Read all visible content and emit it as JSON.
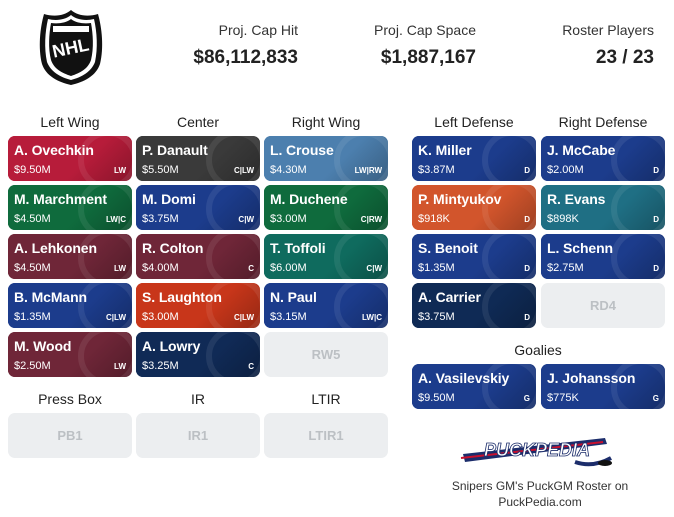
{
  "summary": {
    "cap_hit_label": "Proj. Cap Hit",
    "cap_hit_value": "$86,112,833",
    "cap_space_label": "Proj. Cap Space",
    "cap_space_value": "$1,887,167",
    "roster_label": "Roster Players",
    "roster_value": "23 / 23"
  },
  "columns": {
    "left_wing": "Left Wing",
    "center": "Center",
    "right_wing": "Right Wing",
    "left_defense": "Left Defense",
    "right_defense": "Right Defense",
    "goalies": "Goalies",
    "press_box": "Press Box",
    "ir": "IR",
    "ltir": "LTIR"
  },
  "colors": {
    "capitals": "#b81e33",
    "hurricanes": "#c8102e",
    "avalanche": "#6f263d",
    "senators": "#4b4b4b",
    "lightning": "#123a86",
    "kraken": "#1f6f84",
    "jets": "#0f2a55",
    "oilers": "#e45c28",
    "bluesteel": "#4a79a8",
    "stars": "#0f6b4b",
    "leafs": "#1a3a8a",
    "green": "#0e6b3a"
  },
  "left_wing": [
    {
      "name": "A. Ovechkin",
      "cap": "$9.50M",
      "pos": "LW",
      "color": "#b71c3a"
    },
    {
      "name": "M. Marchment",
      "cap": "$4.50M",
      "pos": "LW|C",
      "color": "#0f6b3d"
    },
    {
      "name": "A. Lehkonen",
      "cap": "$4.50M",
      "pos": "LW",
      "color": "#6f2638"
    },
    {
      "name": "B. McMann",
      "cap": "$1.35M",
      "pos": "C|LW",
      "color": "#1c3c8c"
    },
    {
      "name": "M. Wood",
      "cap": "$2.50M",
      "pos": "LW",
      "color": "#6f2638"
    }
  ],
  "center": [
    {
      "name": "P. Danault",
      "cap": "$5.50M",
      "pos": "C|LW",
      "color": "#3a3a3a"
    },
    {
      "name": "M. Domi",
      "cap": "$3.75M",
      "pos": "C|W",
      "color": "#1c3c8c"
    },
    {
      "name": "R. Colton",
      "cap": "$4.00M",
      "pos": "C",
      "color": "#6f2638"
    },
    {
      "name": "S. Laughton",
      "cap": "$3.00M",
      "pos": "C|LW",
      "color": "#c8361a"
    },
    {
      "name": "A. Lowry",
      "cap": "$3.25M",
      "pos": "C",
      "color": "#102a56"
    }
  ],
  "right_wing": [
    {
      "name": "L. Crouse",
      "cap": "$4.30M",
      "pos": "LW|RW",
      "color": "#4c7fae"
    },
    {
      "name": "M. Duchene",
      "cap": "$3.00M",
      "pos": "C|RW",
      "color": "#0f6b3d"
    },
    {
      "name": "T. Toffoli",
      "cap": "$6.00M",
      "pos": "C|W",
      "color": "#0f6b5e"
    },
    {
      "name": "N. Paul",
      "cap": "$3.15M",
      "pos": "LW|C",
      "color": "#1c3c8c"
    }
  ],
  "right_wing_empty": "RW5",
  "left_defense": [
    {
      "name": "K. Miller",
      "cap": "$3.87M",
      "pos": "D",
      "color": "#1c3c8c"
    },
    {
      "name": "P. Mintyukov",
      "cap": "$918K",
      "pos": "D",
      "color": "#d2552c"
    },
    {
      "name": "S. Benoit",
      "cap": "$1.35M",
      "pos": "D",
      "color": "#1c3c8c"
    },
    {
      "name": "A. Carrier",
      "cap": "$3.75M",
      "pos": "D",
      "color": "#0f2a55"
    }
  ],
  "right_defense": [
    {
      "name": "J. McCabe",
      "cap": "$2.00M",
      "pos": "D",
      "color": "#1c3c8c"
    },
    {
      "name": "R. Evans",
      "cap": "$898K",
      "pos": "D",
      "color": "#1f6f84"
    },
    {
      "name": "L. Schenn",
      "cap": "$2.75M",
      "pos": "D",
      "color": "#1c3c8c"
    }
  ],
  "right_defense_empty": "RD4",
  "goalies": [
    {
      "name": "A. Vasilevskiy",
      "cap": "$9.50M",
      "pos": "G",
      "color": "#1c3c8c"
    },
    {
      "name": "J. Johansson",
      "cap": "$775K",
      "pos": "G",
      "color": "#1c3c8c"
    }
  ],
  "press_box": {
    "pb": "PB1",
    "ir": "IR1",
    "ltir": "LTIR1"
  },
  "footer": {
    "brand": "PUCKPEDIA",
    "line1": "Snipers GM's PuckGM Roster on",
    "line2": "PuckPedia.com"
  }
}
